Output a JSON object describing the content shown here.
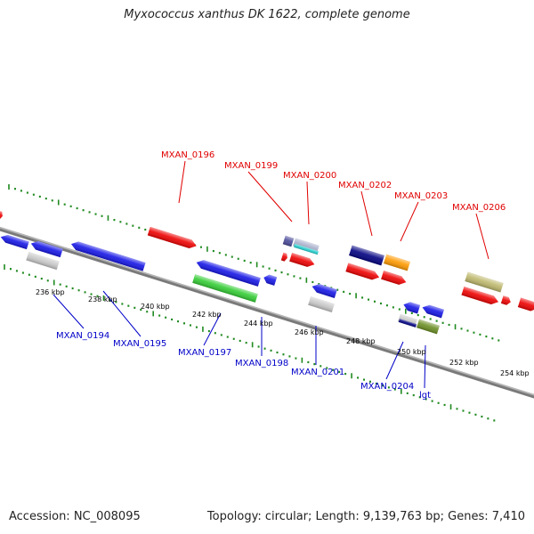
{
  "title": "Myxococcus xanthus DK 1622, complete genome",
  "footer": {
    "accession": "Accession: NC_008095",
    "summary": "Topology: circular; Length: 9,139,763 bp; Genes: 7,410"
  },
  "axis": {
    "unit": "kbp",
    "tick_labels": [
      {
        "value": 236,
        "text": "236 kbp"
      },
      {
        "value": 238,
        "text": "238 kbp"
      },
      {
        "value": 240,
        "text": "240 kbp"
      },
      {
        "value": 242,
        "text": "242 kbp"
      },
      {
        "value": 244,
        "text": "244 kbp"
      },
      {
        "value": 246,
        "text": "246 kbp"
      },
      {
        "value": 248,
        "text": "248 kbp"
      },
      {
        "value": 250,
        "text": "250 kbp"
      },
      {
        "value": 252,
        "text": "252 kbp"
      },
      {
        "value": 254,
        "text": "254 kbp"
      }
    ]
  },
  "colors": {
    "forward_label": "#e00000",
    "reverse_label": "#0000c8",
    "backbone": "#808080",
    "ticks": "#228b22"
  },
  "labels_forward": [
    {
      "text": "MXAN_0196"
    },
    {
      "text": "MXAN_0199"
    },
    {
      "text": "MXAN_0200"
    },
    {
      "text": "MXAN_0202"
    },
    {
      "text": "MXAN_0203"
    },
    {
      "text": "MXAN_0206"
    }
  ],
  "labels_reverse": [
    {
      "text": "MXAN_0194"
    },
    {
      "text": "MXAN_0195"
    },
    {
      "text": "MXAN_0197"
    },
    {
      "text": "MXAN_0198"
    },
    {
      "text": "MXAN_0201"
    },
    {
      "text": "MXAN_0204"
    },
    {
      "text": "lgt"
    }
  ]
}
